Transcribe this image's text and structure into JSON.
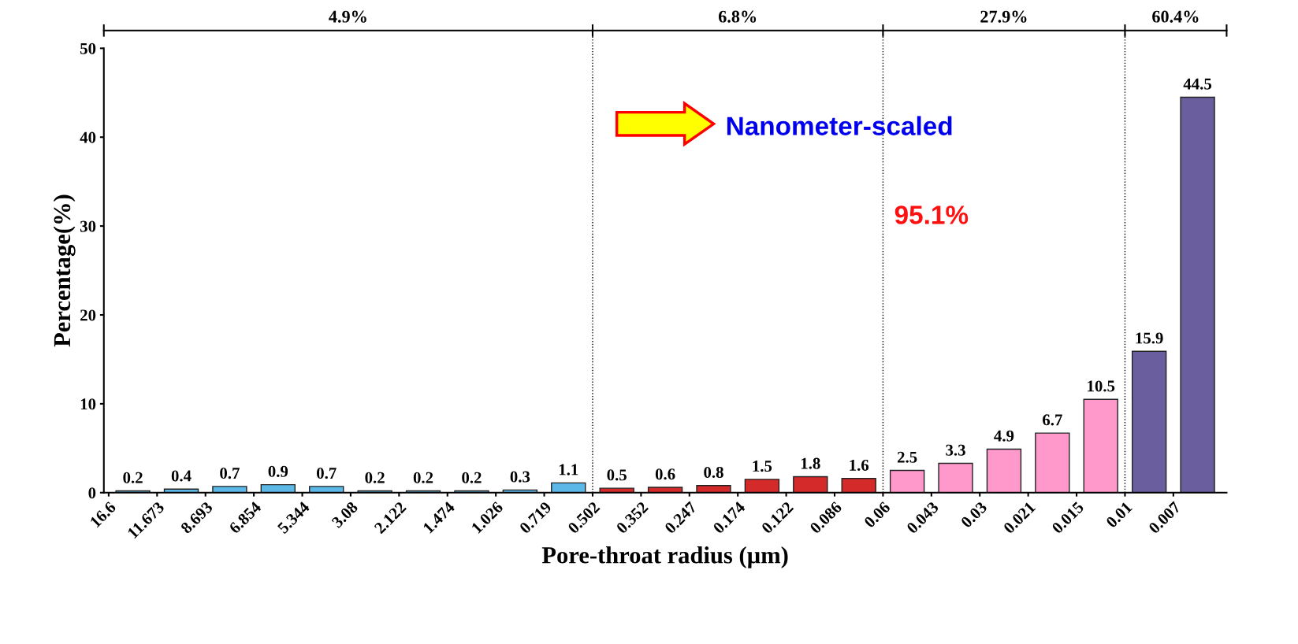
{
  "chart_data": {
    "type": "bar",
    "xlabel": "Pore-throat radius (µm)",
    "ylabel": "Percentage(%)",
    "categories": [
      "16.6",
      "11.673",
      "8.693",
      "6.854",
      "5.344",
      "3.08",
      "2.122",
      "1.474",
      "1.026",
      "0.719",
      "0.502",
      "0.352",
      "0.247",
      "0.174",
      "0.122",
      "0.086",
      "0.06",
      "0.043",
      "0.03",
      "0.021",
      "0.015",
      "0.01",
      "0.007"
    ],
    "values": [
      0.2,
      0.4,
      0.7,
      0.9,
      0.7,
      0.2,
      0.2,
      0.2,
      0.3,
      1.1,
      0.5,
      0.6,
      0.8,
      1.5,
      1.8,
      1.6,
      2.5,
      3.3,
      4.9,
      6.7,
      10.5,
      15.9,
      44.5
    ],
    "colors": [
      "#5cb8e6",
      "#5cb8e6",
      "#5cb8e6",
      "#5cb8e6",
      "#5cb8e6",
      "#5cb8e6",
      "#5cb8e6",
      "#5cb8e6",
      "#5cb8e6",
      "#5cb8e6",
      "#d42a2a",
      "#d42a2a",
      "#d42a2a",
      "#d42a2a",
      "#d42a2a",
      "#d42a2a",
      "#ff99cc",
      "#ff99cc",
      "#ff99cc",
      "#ff99cc",
      "#ff99cc",
      "#6b5e9e",
      "#6b5e9e"
    ],
    "ylim": [
      0,
      50
    ],
    "yticks": [
      0,
      10,
      20,
      30,
      40,
      50
    ],
    "data_labels": true,
    "grid": false,
    "ref_lines": [
      {
        "axis": "x",
        "value": "0.502",
        "line_style": "dotted"
      },
      {
        "axis": "x",
        "value": "0.06",
        "line_style": "dotted"
      },
      {
        "axis": "x",
        "value": "0.01",
        "line_style": "dotted"
      }
    ],
    "annotations": [
      "Nanometer-scaled",
      "95.1%",
      "4.9%",
      "6.8%",
      "27.9%",
      "60.4%"
    ]
  }
}
